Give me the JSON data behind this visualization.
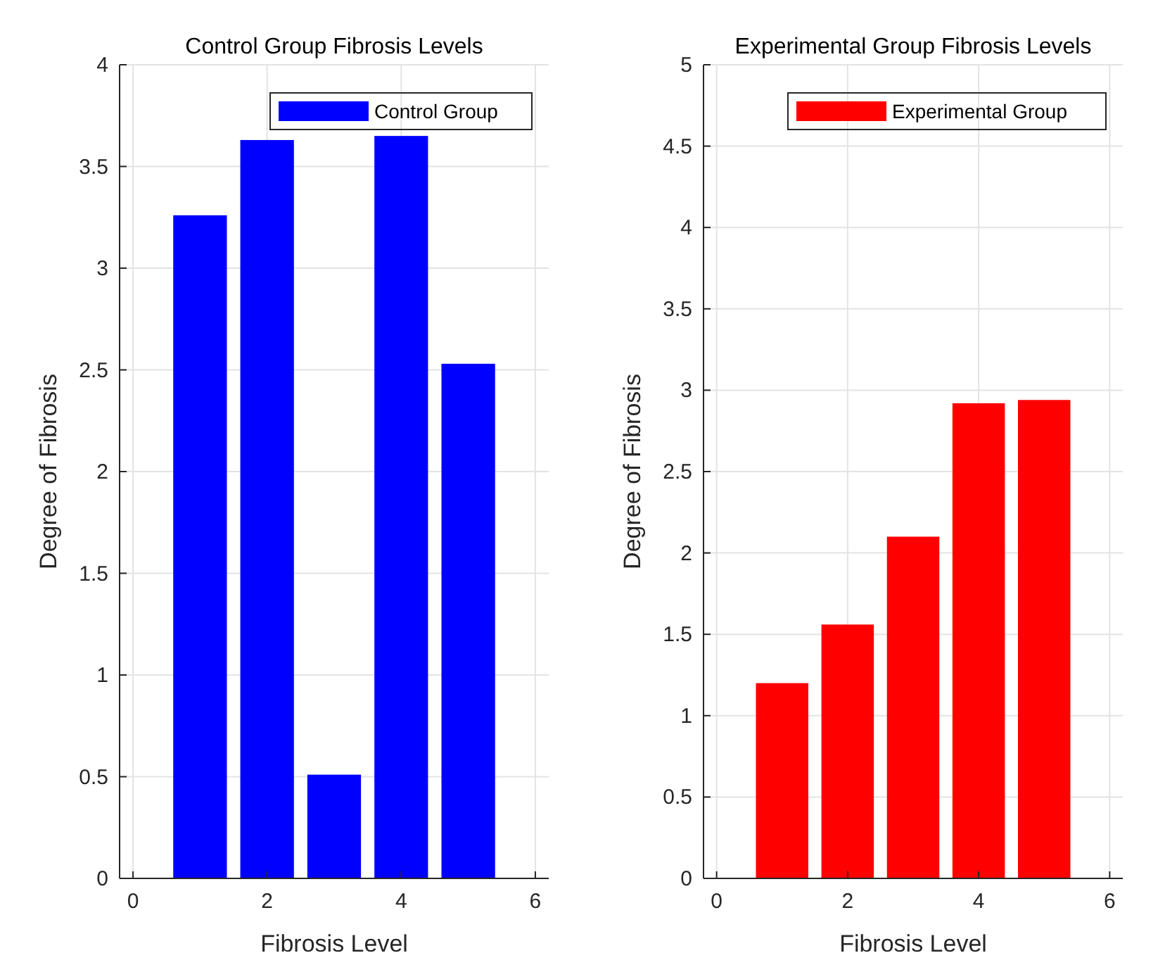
{
  "chart_data": [
    {
      "type": "bar",
      "title": "Control Group Fibrosis Levels",
      "xlabel": "Fibrosis Level",
      "ylabel": "Degree of Fibrosis",
      "x": [
        1,
        2,
        3,
        4,
        5
      ],
      "series": [
        {
          "name": "Control Group",
          "color": "#0000ff",
          "values": [
            3.26,
            3.63,
            0.51,
            3.65,
            2.53
          ]
        }
      ],
      "xlim": [
        -0.2,
        6.2
      ],
      "xticks": [
        0,
        2,
        4,
        6
      ],
      "ylim": [
        0,
        4
      ],
      "yticks": [
        0,
        0.5,
        1,
        1.5,
        2,
        2.5,
        3,
        3.5,
        4
      ],
      "grid": true,
      "legend": "top right"
    },
    {
      "type": "bar",
      "title": "Experimental Group Fibrosis Levels",
      "xlabel": "Fibrosis Level",
      "ylabel": "Degree of Fibrosis",
      "x": [
        1,
        2,
        3,
        4,
        5
      ],
      "series": [
        {
          "name": "Experimental Group",
          "color": "#ff0000",
          "values": [
            1.2,
            1.56,
            2.1,
            2.92,
            2.94
          ]
        }
      ],
      "xlim": [
        -0.2,
        6.2
      ],
      "xticks": [
        0,
        2,
        4,
        6
      ],
      "ylim": [
        0,
        5
      ],
      "yticks": [
        0,
        0.5,
        1,
        1.5,
        2,
        2.5,
        3,
        3.5,
        4,
        4.5,
        5
      ],
      "grid": true,
      "legend": "top right"
    }
  ]
}
